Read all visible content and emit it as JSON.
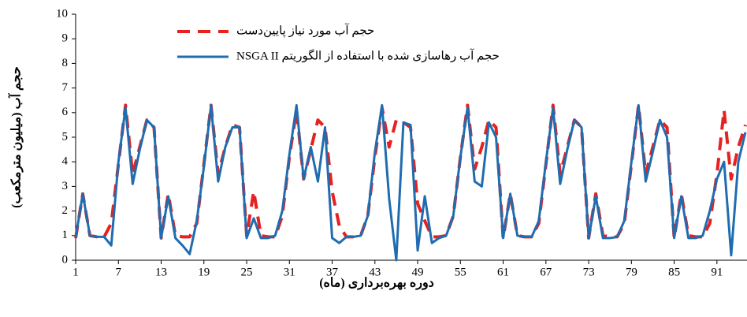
{
  "chart_data": {
    "type": "line",
    "y_label": "حجم آب (میلیون مترمکعب)",
    "x_label": "دوره بهره‌برداری (ماه)",
    "x": [
      1,
      2,
      3,
      4,
      5,
      6,
      7,
      8,
      9,
      10,
      11,
      12,
      13,
      14,
      15,
      16,
      17,
      18,
      19,
      20,
      21,
      22,
      23,
      24,
      25,
      26,
      27,
      28,
      29,
      30,
      31,
      32,
      33,
      34,
      35,
      36,
      37,
      38,
      39,
      40,
      41,
      42,
      43,
      44,
      45,
      46,
      47,
      48,
      49,
      50,
      51,
      52,
      53,
      54,
      55,
      56,
      57,
      58,
      59,
      60,
      61,
      62,
      63,
      64,
      65,
      66,
      67,
      68,
      69,
      70,
      71,
      72,
      73,
      74,
      75,
      76,
      77,
      78,
      79,
      80,
      81,
      82,
      83,
      84,
      85,
      86,
      87,
      88,
      89,
      90,
      91,
      92,
      93,
      94,
      95
    ],
    "series": [
      {
        "name": "حجم آب مورد نیاز پایین‌دست",
        "color": "#e8201f",
        "dashed": true,
        "values": [
          0.9,
          2.7,
          1.0,
          0.95,
          0.95,
          1.5,
          3.9,
          6.3,
          3.5,
          4.6,
          5.7,
          5.4,
          0.9,
          2.7,
          1.0,
          0.95,
          0.95,
          1.5,
          3.9,
          6.3,
          3.5,
          4.6,
          5.5,
          5.4,
          1.0,
          2.8,
          1.0,
          0.95,
          0.95,
          1.8,
          4.2,
          6.1,
          3.3,
          4.5,
          5.7,
          5.4,
          2.8,
          1.4,
          0.95,
          0.95,
          1.0,
          1.8,
          4.2,
          6.2,
          4.6,
          5.7,
          5.6,
          5.4,
          2.3,
          1.6,
          0.95,
          0.95,
          1.0,
          1.8,
          4.2,
          6.3,
          3.7,
          4.6,
          5.7,
          5.4,
          0.9,
          2.7,
          1.0,
          0.95,
          0.95,
          1.5,
          3.9,
          6.3,
          3.5,
          4.6,
          5.7,
          5.4,
          0.9,
          2.7,
          1.0,
          0.95,
          0.95,
          1.5,
          3.9,
          6.3,
          3.5,
          4.6,
          5.7,
          5.4,
          0.9,
          2.7,
          1.0,
          0.95,
          0.95,
          1.5,
          3.5,
          6.1,
          3.3,
          4.6,
          5.5
        ]
      },
      {
        "name": "حجم آب رهاسازی شده با استفاده از الگوریتم NSGA II",
        "color": "#1f6db0",
        "dashed": false,
        "values": [
          0.9,
          2.7,
          1.0,
          0.95,
          0.95,
          0.6,
          4.0,
          6.2,
          3.1,
          4.5,
          5.7,
          5.4,
          0.9,
          2.6,
          0.9,
          0.6,
          0.25,
          1.6,
          3.8,
          6.3,
          3.2,
          4.6,
          5.4,
          5.4,
          0.9,
          1.7,
          0.9,
          0.9,
          1.0,
          2.0,
          4.3,
          6.3,
          3.3,
          4.6,
          3.2,
          5.4,
          0.9,
          0.7,
          0.95,
          0.95,
          1.0,
          1.8,
          4.4,
          6.3,
          2.5,
          0.0,
          5.6,
          5.5,
          0.4,
          2.6,
          0.7,
          0.9,
          1.0,
          1.8,
          4.2,
          6.2,
          3.2,
          3.0,
          5.6,
          5.0,
          0.9,
          2.7,
          1.0,
          0.95,
          0.95,
          1.6,
          4.0,
          6.2,
          3.1,
          4.5,
          5.7,
          5.4,
          0.9,
          2.6,
          0.9,
          0.9,
          0.95,
          1.6,
          4.0,
          6.3,
          3.2,
          4.4,
          5.7,
          5.0,
          0.9,
          2.6,
          0.9,
          0.9,
          1.0,
          2.0,
          3.3,
          4.0,
          0.2,
          4.0,
          5.2
        ]
      }
    ],
    "xlim": [
      1,
      95
    ],
    "xticks": [
      1,
      7,
      13,
      19,
      25,
      31,
      37,
      43,
      49,
      55,
      61,
      67,
      73,
      79,
      85,
      91
    ],
    "ylim": [
      0,
      10
    ],
    "yticks": [
      0,
      1,
      2,
      3,
      4,
      5,
      6,
      7,
      8,
      9,
      10
    ]
  }
}
